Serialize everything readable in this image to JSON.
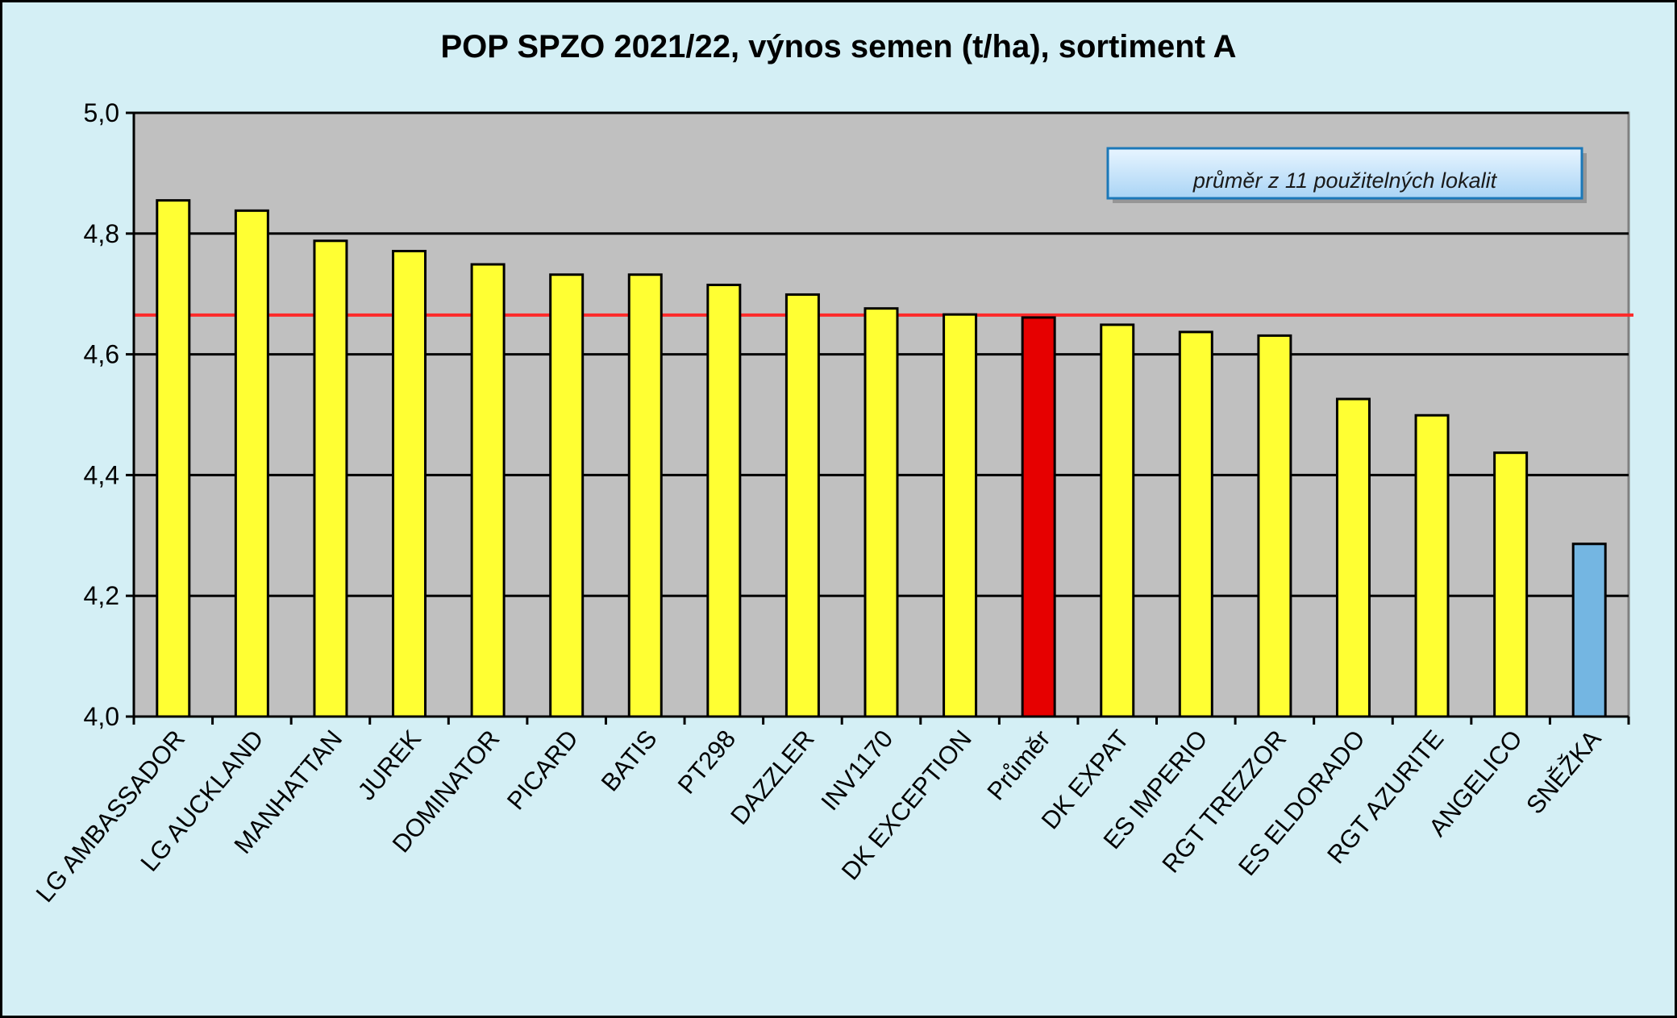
{
  "chart_data": {
    "type": "bar",
    "title": "POP SPZO 2021/22, výnos semen (t/ha), sortiment A",
    "xlabel": "",
    "ylabel": "",
    "ylim": [
      4.0,
      5.0
    ],
    "yticks": [
      4.0,
      4.2,
      4.4,
      4.6,
      4.8,
      5.0
    ],
    "ytick_labels": [
      "4,0",
      "4,2",
      "4,4",
      "4,6",
      "4,8",
      "5,0"
    ],
    "grid": true,
    "annotation": "průměr z 11 použitelných lokalit",
    "reference_line": {
      "value": 4.665,
      "color": "#ff2a2a"
    },
    "categories": [
      "LG AMBASSADOR",
      "LG AUCKLAND",
      "MANHATTAN",
      "JUREK",
      "DOMINATOR",
      "PICARD",
      "BATIS",
      "PT298",
      "DAZZLER",
      "INV1170",
      "DK EXCEPTION",
      "Průměr",
      "DK EXPAT",
      "ES IMPERIO",
      "RGT TREZZOR",
      "ES ELDORADO",
      "RGT AZURITE",
      "ANGELICO",
      "SNĚŽKA"
    ],
    "values": [
      4.855,
      4.838,
      4.788,
      4.771,
      4.749,
      4.732,
      4.732,
      4.715,
      4.699,
      4.676,
      4.666,
      4.661,
      4.649,
      4.637,
      4.631,
      4.526,
      4.499,
      4.437,
      4.286
    ],
    "bar_colors": [
      "#ffff33",
      "#ffff33",
      "#ffff33",
      "#ffff33",
      "#ffff33",
      "#ffff33",
      "#ffff33",
      "#ffff33",
      "#ffff33",
      "#ffff33",
      "#ffff33",
      "#e60000",
      "#ffff33",
      "#ffff33",
      "#ffff33",
      "#ffff33",
      "#ffff33",
      "#ffff33",
      "#74b6e2"
    ],
    "colors": {
      "plot_background": "#c0c0c0",
      "chart_background": "#d4eff5",
      "annotation_box": "#b5dcfa"
    }
  }
}
